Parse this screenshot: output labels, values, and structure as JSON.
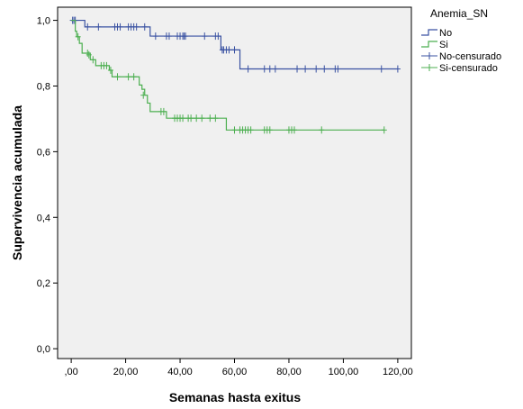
{
  "chart_data": {
    "type": "line",
    "xlabel": "Semanas hasta exitus",
    "ylabel": "Supervivencia acumulada",
    "xlim": [
      -5,
      125
    ],
    "ylim": [
      -0.03,
      1.04
    ],
    "x_ticks": [
      0,
      20,
      40,
      60,
      80,
      100,
      120
    ],
    "x_tick_labels": [
      ",00",
      "20,00",
      "40,00",
      "60,00",
      "80,00",
      "100,00",
      "120,00"
    ],
    "y_ticks": [
      0,
      0.2,
      0.4,
      0.6,
      0.8,
      1.0
    ],
    "y_tick_labels": [
      "0,0",
      "0,2",
      "0,4",
      "0,6",
      "0,8",
      "1,0"
    ],
    "grid": false,
    "background": "#f0f0f0",
    "legend": {
      "title": "Anemia_SN",
      "position": "right",
      "entries": [
        "No",
        "Si",
        "No-censurado",
        "Si-censurado"
      ]
    },
    "series": [
      {
        "name": "No",
        "color": "#3a52a2",
        "steps": [
          [
            0,
            1.0
          ],
          [
            5,
            0.98
          ],
          [
            29,
            0.952
          ],
          [
            55,
            0.91
          ],
          [
            62,
            0.852
          ],
          [
            120,
            0.852
          ]
        ],
        "censored": [
          [
            0.5,
            1.0
          ],
          [
            1,
            1.0
          ],
          [
            1.5,
            1.0
          ],
          [
            6,
            0.98
          ],
          [
            10,
            0.98
          ],
          [
            16,
            0.98
          ],
          [
            17,
            0.98
          ],
          [
            18,
            0.98
          ],
          [
            21,
            0.98
          ],
          [
            22,
            0.98
          ],
          [
            23,
            0.98
          ],
          [
            24,
            0.98
          ],
          [
            27,
            0.98
          ],
          [
            31,
            0.952
          ],
          [
            35,
            0.952
          ],
          [
            36,
            0.952
          ],
          [
            39,
            0.952
          ],
          [
            40,
            0.952
          ],
          [
            41,
            0.952
          ],
          [
            41.5,
            0.952
          ],
          [
            42,
            0.952
          ],
          [
            49,
            0.952
          ],
          [
            53,
            0.952
          ],
          [
            54,
            0.952
          ],
          [
            55.5,
            0.91
          ],
          [
            56,
            0.91
          ],
          [
            57,
            0.91
          ],
          [
            58,
            0.91
          ],
          [
            60,
            0.91
          ],
          [
            65,
            0.852
          ],
          [
            71,
            0.852
          ],
          [
            73,
            0.852
          ],
          [
            75,
            0.852
          ],
          [
            83,
            0.852
          ],
          [
            86,
            0.852
          ],
          [
            90,
            0.852
          ],
          [
            93,
            0.852
          ],
          [
            97,
            0.852
          ],
          [
            98,
            0.852
          ],
          [
            114,
            0.852
          ],
          [
            120,
            0.852
          ]
        ]
      },
      {
        "name": "Si",
        "color": "#4caf50",
        "steps": [
          [
            0,
            1.0
          ],
          [
            1.5,
            0.967
          ],
          [
            2,
            0.95
          ],
          [
            3,
            0.93
          ],
          [
            4,
            0.9
          ],
          [
            7,
            0.88
          ],
          [
            9,
            0.862
          ],
          [
            14,
            0.848
          ],
          [
            15,
            0.828
          ],
          [
            25,
            0.803
          ],
          [
            26,
            0.79
          ],
          [
            27,
            0.772
          ],
          [
            28,
            0.748
          ],
          [
            29,
            0.722
          ],
          [
            35,
            0.702
          ],
          [
            57,
            0.666
          ],
          [
            115,
            0.666
          ]
        ],
        "censored": [
          [
            2.5,
            0.95
          ],
          [
            6,
            0.9
          ],
          [
            6.5,
            0.895
          ],
          [
            8,
            0.88
          ],
          [
            11,
            0.862
          ],
          [
            12,
            0.862
          ],
          [
            13,
            0.862
          ],
          [
            14.5,
            0.848
          ],
          [
            17,
            0.828
          ],
          [
            21,
            0.828
          ],
          [
            23,
            0.828
          ],
          [
            26.5,
            0.772
          ],
          [
            33,
            0.722
          ],
          [
            34,
            0.722
          ],
          [
            38,
            0.702
          ],
          [
            39,
            0.702
          ],
          [
            40,
            0.702
          ],
          [
            41,
            0.702
          ],
          [
            43,
            0.702
          ],
          [
            44,
            0.702
          ],
          [
            46,
            0.702
          ],
          [
            48,
            0.702
          ],
          [
            51,
            0.702
          ],
          [
            53,
            0.702
          ],
          [
            60,
            0.666
          ],
          [
            62,
            0.666
          ],
          [
            63,
            0.666
          ],
          [
            64,
            0.666
          ],
          [
            65,
            0.666
          ],
          [
            66,
            0.666
          ],
          [
            71,
            0.666
          ],
          [
            72,
            0.666
          ],
          [
            73,
            0.666
          ],
          [
            80,
            0.666
          ],
          [
            81,
            0.666
          ],
          [
            82,
            0.666
          ],
          [
            92,
            0.666
          ],
          [
            115,
            0.666
          ]
        ]
      }
    ]
  }
}
